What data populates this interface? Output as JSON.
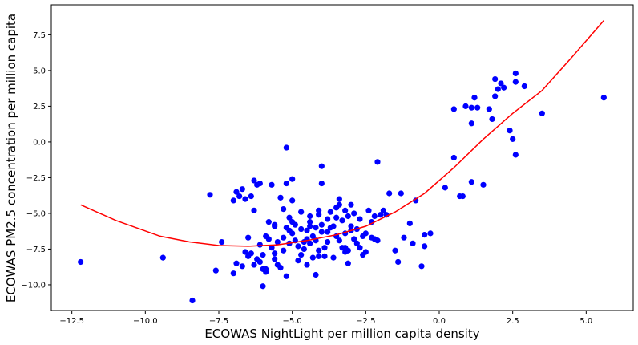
{
  "chart_data": {
    "type": "scatter",
    "xlabel": "ECOWAS NightLight per million capita density",
    "ylabel": "ECOWAS PM2.5 concentration per million capita",
    "xlim": [
      -13.2,
      6.6
    ],
    "ylim": [
      -11.8,
      9.6
    ],
    "xticks": [
      -12.5,
      -10.0,
      -7.5,
      -5.0,
      -2.5,
      0.0,
      2.5,
      5.0
    ],
    "xtick_labels": [
      "−12.5",
      "−10.0",
      "−7.5",
      "−5.0",
      "−2.5",
      "0.0",
      "2.5",
      "5.0"
    ],
    "yticks": [
      -10.0,
      -7.5,
      -5.0,
      -2.5,
      0.0,
      2.5,
      5.0,
      7.5
    ],
    "ytick_labels": [
      "−10.0",
      "−7.5",
      "−5.0",
      "−2.5",
      "0.0",
      "2.5",
      "5.0",
      "7.5"
    ],
    "grid": false,
    "series": [
      {
        "kind": "points",
        "color": "#0000ff",
        "points": [
          [
            -12.2,
            -8.4
          ],
          [
            -9.4,
            -8.1
          ],
          [
            -8.4,
            -11.1
          ],
          [
            -7.8,
            -3.7
          ],
          [
            -7.6,
            -9.0
          ],
          [
            -7.4,
            -7.0
          ],
          [
            -7.0,
            -4.1
          ],
          [
            -6.9,
            -3.5
          ],
          [
            -6.8,
            -3.8
          ],
          [
            -6.7,
            -3.3
          ],
          [
            -6.6,
            -4.0
          ],
          [
            -6.4,
            -3.8
          ],
          [
            -6.3,
            -2.7
          ],
          [
            -6.3,
            -4.8
          ],
          [
            -6.2,
            -3.0
          ],
          [
            -6.1,
            -2.9
          ],
          [
            -6.1,
            -8.4
          ],
          [
            -6.0,
            -8.9
          ],
          [
            -5.9,
            -9.1
          ],
          [
            -5.8,
            -5.6
          ],
          [
            -5.7,
            -3.0
          ],
          [
            -5.6,
            -5.8
          ],
          [
            -5.6,
            -7.8
          ],
          [
            -5.5,
            -8.6
          ],
          [
            -5.4,
            -3.9
          ],
          [
            -5.3,
            -6.7
          ],
          [
            -5.2,
            -0.4
          ],
          [
            -5.2,
            -2.9
          ],
          [
            -5.1,
            -5.3
          ],
          [
            -5.1,
            -6.2
          ],
          [
            -5.0,
            -4.1
          ],
          [
            -5.0,
            -2.6
          ],
          [
            -4.9,
            -6.9
          ],
          [
            -4.8,
            -7.3
          ],
          [
            -4.7,
            -7.9
          ],
          [
            -4.6,
            -7.0
          ],
          [
            -4.5,
            -8.6
          ],
          [
            -4.5,
            -6.2
          ],
          [
            -4.4,
            -5.6
          ],
          [
            -4.4,
            -5.9
          ],
          [
            -4.3,
            -6.6
          ],
          [
            -4.2,
            -6.9
          ],
          [
            -4.1,
            -5.1
          ],
          [
            -4.1,
            -8.0
          ],
          [
            -4.0,
            -1.7
          ],
          [
            -4.0,
            -2.9
          ],
          [
            -4.0,
            -5.8
          ],
          [
            -3.9,
            -7.4
          ],
          [
            -3.8,
            -6.3
          ],
          [
            -3.7,
            -4.9
          ],
          [
            -3.6,
            -5.9
          ],
          [
            -3.5,
            -6.6
          ],
          [
            -3.4,
            -4.0
          ],
          [
            -3.4,
            -4.4
          ],
          [
            -3.3,
            -7.4
          ],
          [
            -3.2,
            -7.7
          ],
          [
            -3.2,
            -4.8
          ],
          [
            -3.1,
            -5.2
          ],
          [
            -3.1,
            -8.5
          ],
          [
            -3.0,
            -4.4
          ],
          [
            -3.0,
            -5.9
          ],
          [
            -2.9,
            -6.8
          ],
          [
            -2.8,
            -7.1
          ],
          [
            -2.7,
            -7.4
          ],
          [
            -2.6,
            -6.6
          ],
          [
            -2.5,
            -7.7
          ],
          [
            -2.3,
            -5.6
          ],
          [
            -2.2,
            -6.8
          ],
          [
            -2.1,
            -1.4
          ],
          [
            -2.0,
            -5.1
          ],
          [
            -1.9,
            -4.8
          ],
          [
            -1.8,
            -5.1
          ],
          [
            -1.7,
            -3.6
          ],
          [
            -1.5,
            -7.6
          ],
          [
            -1.4,
            -8.4
          ],
          [
            -1.3,
            -3.6
          ],
          [
            -1.2,
            -6.7
          ],
          [
            -1.0,
            -5.7
          ],
          [
            -0.9,
            -7.1
          ],
          [
            -0.8,
            -4.1
          ],
          [
            -0.6,
            -8.7
          ],
          [
            -0.5,
            -7.3
          ],
          [
            -0.5,
            -6.5
          ],
          [
            -0.3,
            -6.4
          ],
          [
            0.2,
            -3.2
          ],
          [
            0.5,
            2.3
          ],
          [
            0.5,
            -1.1
          ],
          [
            0.7,
            -3.8
          ],
          [
            0.8,
            -3.8
          ],
          [
            0.9,
            2.5
          ],
          [
            1.1,
            -2.8
          ],
          [
            1.1,
            2.4
          ],
          [
            1.1,
            1.3
          ],
          [
            1.2,
            3.1
          ],
          [
            1.3,
            2.4
          ],
          [
            1.5,
            -3.0
          ],
          [
            1.7,
            2.3
          ],
          [
            1.8,
            1.6
          ],
          [
            1.9,
            3.2
          ],
          [
            1.9,
            4.4
          ],
          [
            2.0,
            3.7
          ],
          [
            2.1,
            4.1
          ],
          [
            2.2,
            3.8
          ],
          [
            2.4,
            0.8
          ],
          [
            2.5,
            0.2
          ],
          [
            2.6,
            4.8
          ],
          [
            2.6,
            4.2
          ],
          [
            2.6,
            -0.9
          ],
          [
            2.9,
            3.9
          ],
          [
            3.5,
            2.0
          ],
          [
            5.6,
            3.1
          ],
          [
            -6.9,
            -8.5
          ],
          [
            -6.7,
            -8.7
          ],
          [
            -6.6,
            -7.7
          ],
          [
            -6.5,
            -8.0
          ],
          [
            -6.4,
            -7.8
          ],
          [
            -6.3,
            -8.6
          ],
          [
            -6.2,
            -8.2
          ],
          [
            -6.1,
            -7.2
          ],
          [
            -6.0,
            -7.9
          ],
          [
            -5.9,
            -8.9
          ],
          [
            -5.8,
            -6.8
          ],
          [
            -5.7,
            -7.4
          ],
          [
            -5.6,
            -8.2
          ],
          [
            -5.5,
            -7.0
          ],
          [
            -5.4,
            -8.8
          ],
          [
            -5.3,
            -7.6
          ],
          [
            -5.2,
            -6.0
          ],
          [
            -5.1,
            -7.1
          ],
          [
            -5.0,
            -6.4
          ],
          [
            -4.9,
            -5.8
          ],
          [
            -4.8,
            -8.3
          ],
          [
            -4.7,
            -6.1
          ],
          [
            -4.6,
            -7.5
          ],
          [
            -4.5,
            -6.8
          ],
          [
            -4.4,
            -7.1
          ],
          [
            -4.3,
            -8.1
          ],
          [
            -4.2,
            -6.0
          ],
          [
            -4.1,
            -7.6
          ],
          [
            -4.0,
            -6.3
          ],
          [
            -3.9,
            -8.0
          ],
          [
            -3.8,
            -7.0
          ],
          [
            -3.7,
            -6.0
          ],
          [
            -3.6,
            -8.1
          ],
          [
            -3.5,
            -5.3
          ],
          [
            -3.4,
            -6.9
          ],
          [
            -3.3,
            -5.5
          ],
          [
            -3.2,
            -6.4
          ],
          [
            -3.1,
            -7.6
          ],
          [
            -3.0,
            -6.2
          ],
          [
            -2.9,
            -5.0
          ],
          [
            -2.8,
            -6.1
          ],
          [
            -2.7,
            -5.4
          ],
          [
            -2.6,
            -7.9
          ],
          [
            -2.5,
            -6.4
          ],
          [
            -2.4,
            -4.8
          ],
          [
            -2.3,
            -6.7
          ],
          [
            -2.2,
            -5.2
          ],
          [
            -2.1,
            -6.9
          ],
          [
            -5.6,
            -5.9
          ],
          [
            -5.3,
            -4.7
          ],
          [
            -5.0,
            -5.6
          ],
          [
            -4.7,
            -4.9
          ],
          [
            -4.4,
            -5.2
          ],
          [
            -4.1,
            -4.8
          ],
          [
            -3.8,
            -5.4
          ],
          [
            -3.5,
            -4.6
          ],
          [
            -5.9,
            -6.6
          ],
          [
            -6.5,
            -6.7
          ],
          [
            -7.0,
            -9.2
          ],
          [
            -6.0,
            -10.1
          ],
          [
            -5.2,
            -9.4
          ],
          [
            -4.2,
            -9.3
          ],
          [
            -3.2,
            -7.4
          ]
        ]
      },
      {
        "kind": "fit-line",
        "color": "#ff0000",
        "points": [
          [
            -12.2,
            -4.4
          ],
          [
            -11.0,
            -5.5
          ],
          [
            -9.5,
            -6.6
          ],
          [
            -8.5,
            -7.0
          ],
          [
            -7.5,
            -7.25
          ],
          [
            -6.5,
            -7.3
          ],
          [
            -5.5,
            -7.2
          ],
          [
            -4.5,
            -6.9
          ],
          [
            -3.5,
            -6.5
          ],
          [
            -2.5,
            -5.9
          ],
          [
            -1.5,
            -4.9
          ],
          [
            -0.5,
            -3.6
          ],
          [
            0.5,
            -1.8
          ],
          [
            1.5,
            0.2
          ],
          [
            2.5,
            2.0
          ],
          [
            3.5,
            3.6
          ],
          [
            4.5,
            5.9
          ],
          [
            5.6,
            8.5
          ]
        ]
      }
    ]
  }
}
